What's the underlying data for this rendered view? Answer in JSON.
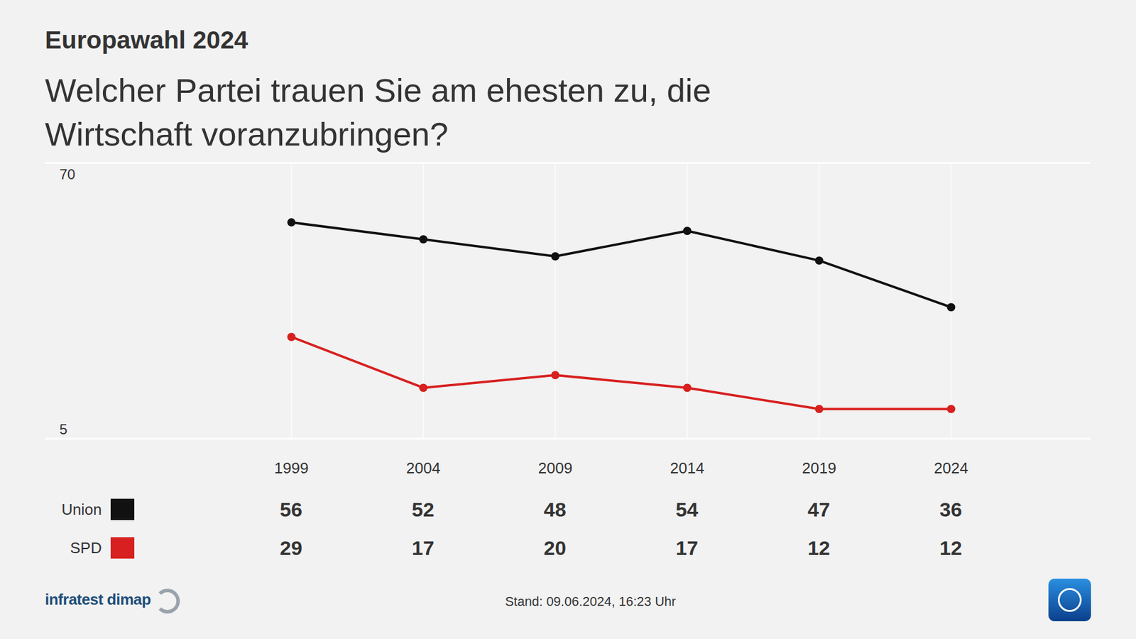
{
  "chart_data": {
    "type": "line",
    "title": "Europawahl 2024",
    "subtitle": "Welcher Partei trauen Sie am ehesten zu, die Wirtschaft voranzubringen?",
    "categories": [
      "1999",
      "2004",
      "2009",
      "2014",
      "2019",
      "2024"
    ],
    "series": [
      {
        "name": "Union",
        "color": "#111111",
        "values": [
          56,
          52,
          48,
          54,
          47,
          36
        ]
      },
      {
        "name": "SPD",
        "color": "#d7201f",
        "values": [
          29,
          17,
          20,
          17,
          12,
          12
        ]
      }
    ],
    "ylim": [
      5,
      70
    ],
    "yticks": [
      5,
      70
    ],
    "grid": true,
    "data_labels": true,
    "marker": "circle",
    "source": "infratest dimap",
    "note": "Stand:  09.06.2024, 16:23 Uhr"
  }
}
